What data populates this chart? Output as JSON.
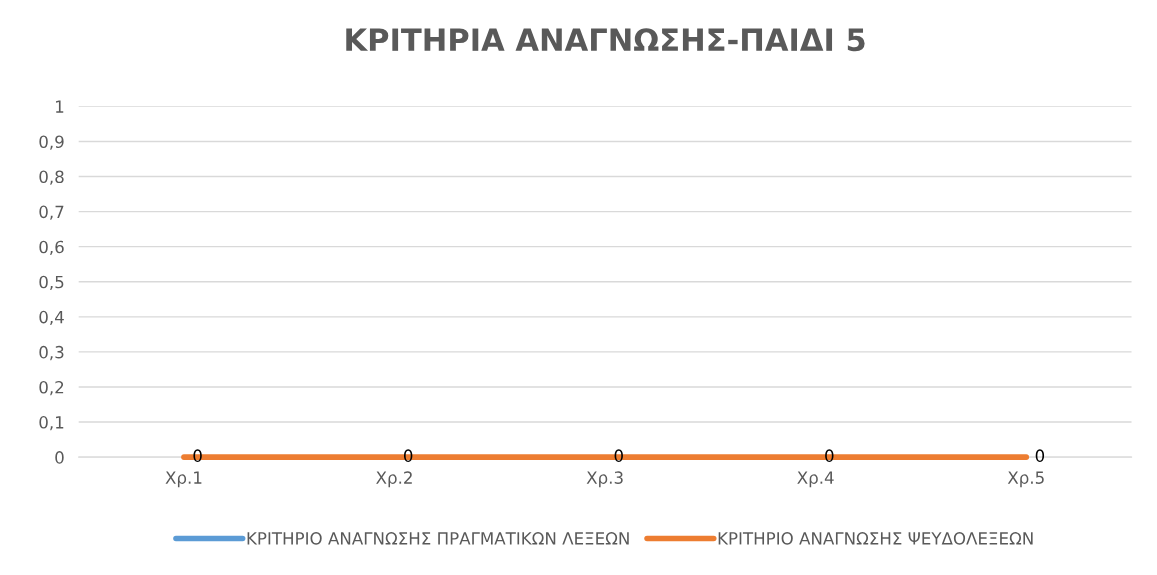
{
  "chart_data": {
    "type": "line",
    "title": "ΚΡΙΤΗΡΙΑ ΑΝΑΓΝΩΣΗΣ-ΠΑΙΔΙ 5",
    "categories": [
      "Χρ.1",
      "Χρ.2",
      "Χρ.3",
      "Χρ.4",
      "Χρ.5"
    ],
    "series": [
      {
        "name": "ΚΡΙΤΗΡΙΟ ΑΝΑΓΝΩΣΗΣ ΠΡΑΓΜΑΤΙΚΩΝ ΛΕΞΕΩΝ",
        "color": "#5b9bd5",
        "values": [
          null,
          null,
          null,
          null,
          null
        ]
      },
      {
        "name": "ΚΡΙΤΗΡΙΟ ΑΝΑΓΝΩΣΗΣ ΨΕΥΔΟΛΕΞΕΩΝ",
        "color": "#ed7d31",
        "values": [
          0,
          0,
          0,
          0,
          0
        ],
        "value_labels": [
          "0",
          "0",
          "0",
          "0",
          "0"
        ]
      }
    ],
    "ylim": [
      0,
      1
    ],
    "yticks": [
      {
        "value": 0,
        "label": "0"
      },
      {
        "value": 0.1,
        "label": "0,1"
      },
      {
        "value": 0.2,
        "label": "0,2"
      },
      {
        "value": 0.3,
        "label": "0,3"
      },
      {
        "value": 0.4,
        "label": "0,4"
      },
      {
        "value": 0.5,
        "label": "0,5"
      },
      {
        "value": 0.6,
        "label": "0,6"
      },
      {
        "value": 0.7,
        "label": "0,7"
      },
      {
        "value": 0.8,
        "label": "0,8"
      },
      {
        "value": 0.9,
        "label": "0,9"
      },
      {
        "value": 1,
        "label": "1"
      }
    ],
    "grid": "y",
    "legend": "bottom",
    "marker": "none",
    "line_style": "solid"
  }
}
